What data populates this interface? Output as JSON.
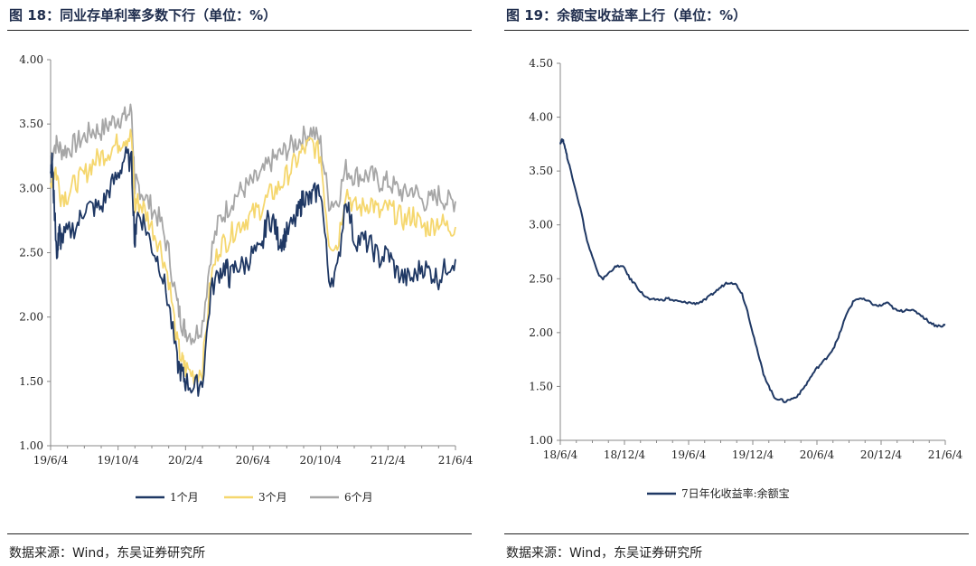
{
  "charts": [
    {
      "figure_title": "图 18：同业存单利率多数下行（单位：%）",
      "source": "数据来源：Wind，东吴证券研究所",
      "chart_data": {
        "type": "line",
        "ylim": [
          1.0,
          4.0
        ],
        "y_ticks": [
          "1.00",
          "1.50",
          "2.00",
          "2.50",
          "3.00",
          "3.50",
          "4.00"
        ],
        "x_ticks": [
          "19/6/4",
          "19/10/4",
          "20/2/4",
          "20/6/4",
          "20/10/4",
          "21/2/4",
          "21/6/4"
        ],
        "grid": false,
        "legend_position": "bottom",
        "series": [
          {
            "name": "1个月",
            "color": "#1f3864",
            "x": [
              0,
              0.1,
              0.2,
              0.4,
              0.5,
              0.6,
              1.0,
              1.6,
              2.0,
              2.5,
              3.0,
              3.5,
              4.0,
              4.4,
              4.8,
              5.0,
              5.1,
              5.5,
              6.0,
              6.5,
              7.0,
              7.5,
              7.8,
              8.0,
              8.5,
              9.0,
              9.5,
              10.0,
              10.4,
              10.6,
              11.0,
              11.5,
              12.0,
              12.5,
              12.8,
              13.2,
              13.5,
              13.8,
              14.0,
              14.5,
              14.8,
              15.0,
              15.3,
              15.6,
              16.0,
              16.5,
              17.0,
              17.5,
              18.0,
              18.5,
              19.0,
              19.5,
              20.0,
              20.5,
              21.0,
              21.5,
              22.0,
              22.5,
              23.0,
              23.5,
              24.0
            ],
            "values": [
              3.15,
              3.2,
              2.9,
              2.45,
              2.7,
              2.6,
              2.65,
              2.72,
              2.85,
              2.85,
              2.85,
              3.0,
              3.1,
              3.25,
              3.2,
              2.55,
              2.8,
              2.75,
              2.55,
              2.4,
              2.1,
              1.65,
              1.55,
              1.5,
              1.45,
              1.5,
              2.2,
              2.35,
              2.4,
              2.3,
              2.4,
              2.4,
              2.5,
              2.5,
              2.75,
              2.75,
              2.6,
              2.6,
              2.65,
              2.75,
              2.85,
              2.95,
              2.9,
              2.95,
              3.0,
              2.3,
              2.35,
              2.95,
              2.6,
              2.6,
              2.55,
              2.45,
              2.5,
              2.35,
              2.3,
              2.3,
              2.4,
              2.35,
              2.3,
              2.4,
              2.45
            ]
          },
          {
            "name": "3个月",
            "color": "#f5d76e",
            "x": [
              0,
              0.3,
              0.6,
              1.0,
              1.5,
              2.0,
              2.5,
              3.0,
              3.5,
              4.0,
              4.4,
              4.8,
              5.0,
              5.1,
              5.5,
              6.0,
              6.5,
              7.0,
              7.5,
              7.8,
              8.0,
              8.5,
              9.0,
              9.5,
              10.0,
              10.5,
              11.0,
              11.5,
              12.0,
              12.5,
              13.0,
              13.5,
              14.0,
              14.5,
              15.0,
              15.5,
              16.0,
              16.5,
              17.0,
              17.5,
              18.0,
              18.5,
              19.0,
              19.5,
              20.0,
              20.5,
              21.0,
              21.5,
              22.0,
              22.5,
              23.0,
              23.5,
              24.0
            ],
            "values": [
              3.05,
              3.15,
              2.95,
              2.95,
              3.05,
              3.1,
              3.2,
              3.25,
              3.3,
              3.35,
              3.4,
              3.4,
              2.85,
              2.9,
              2.85,
              2.7,
              2.55,
              2.3,
              1.8,
              1.65,
              1.6,
              1.55,
              1.6,
              2.3,
              2.55,
              2.6,
              2.7,
              2.75,
              2.8,
              2.85,
              2.95,
              3.0,
              3.1,
              3.2,
              3.3,
              3.35,
              3.25,
              2.6,
              2.55,
              3.0,
              2.85,
              2.85,
              2.9,
              2.8,
              2.85,
              2.8,
              2.75,
              2.8,
              2.7,
              2.7,
              2.75,
              2.7,
              2.7
            ]
          },
          {
            "name": "6个月",
            "color": "#a6a6a6",
            "x": [
              0,
              0.3,
              0.6,
              1.0,
              1.5,
              2.0,
              2.5,
              3.0,
              3.5,
              4.0,
              4.4,
              4.8,
              5.0,
              5.1,
              5.5,
              6.0,
              6.5,
              7.0,
              7.5,
              7.8,
              8.0,
              8.5,
              9.0,
              9.5,
              10.0,
              10.5,
              11.0,
              11.5,
              12.0,
              12.5,
              13.0,
              13.5,
              14.0,
              14.5,
              15.0,
              15.5,
              16.0,
              16.5,
              17.0,
              17.5,
              18.0,
              18.5,
              19.0,
              19.5,
              20.0,
              20.5,
              21.0,
              21.5,
              22.0,
              22.5,
              23.0,
              23.5,
              24.0
            ],
            "values": [
              3.25,
              3.35,
              3.3,
              3.3,
              3.35,
              3.4,
              3.45,
              3.45,
              3.5,
              3.55,
              3.55,
              3.6,
              3.0,
              3.05,
              2.95,
              2.85,
              2.75,
              2.5,
              2.1,
              1.95,
              1.9,
              1.85,
              1.95,
              2.5,
              2.75,
              2.85,
              2.95,
              3.0,
              3.05,
              3.1,
              3.2,
              3.25,
              3.3,
              3.35,
              3.4,
              3.45,
              3.35,
              2.9,
              2.9,
              3.15,
              3.1,
              3.1,
              3.1,
              3.05,
              3.05,
              3.0,
              2.95,
              3.0,
              2.9,
              2.9,
              2.95,
              2.9,
              2.9
            ]
          }
        ]
      }
    },
    {
      "figure_title": "图 19：余额宝收益率上行（单位：%）",
      "source": "数据来源：Wind，东吴证券研究所",
      "chart_data": {
        "type": "line",
        "ylim": [
          1.0,
          4.5
        ],
        "y_ticks": [
          "1.00",
          "1.50",
          "2.00",
          "2.50",
          "3.00",
          "3.50",
          "4.00",
          "4.50"
        ],
        "x_ticks": [
          "18/6/4",
          "18/12/4",
          "19/6/4",
          "19/12/4",
          "20/6/4",
          "20/12/4",
          "21/6/4"
        ],
        "grid": false,
        "legend_position": "bottom",
        "series": [
          {
            "name": "7日年化收益率:余额宝",
            "color": "#1f3864",
            "x": [
              0,
              0.1,
              0.2,
              0.3,
              0.5,
              0.7,
              1.0,
              1.5,
              2.0,
              2.5,
              3.0,
              3.5,
              4.0,
              4.5,
              5.0,
              5.5,
              6.0,
              6.5,
              7.0,
              7.5,
              8.0,
              8.5,
              9.0,
              9.5,
              10.0,
              10.5,
              11.0,
              11.5,
              12.0,
              12.5,
              13.0,
              13.5,
              14.0,
              14.5,
              15.0,
              15.5,
              16.0,
              16.5,
              17.0,
              17.5,
              18.0,
              18.5,
              19.0,
              19.5,
              20.0,
              20.5,
              21.0,
              21.5,
              22.0,
              22.5,
              23.0,
              23.5,
              24.0,
              24.5,
              25.0,
              25.5,
              26.0,
              26.5,
              27.0,
              27.5,
              28.0,
              28.5,
              29.0,
              29.5,
              30.0,
              30.5,
              31.0,
              31.5,
              32.0,
              32.5,
              33.0,
              33.5,
              34.0,
              34.5,
              35.0,
              35.5,
              36.0
            ],
            "values": [
              3.76,
              3.78,
              3.79,
              3.77,
              3.7,
              3.6,
              3.5,
              3.3,
              3.1,
              2.85,
              2.7,
              2.55,
              2.5,
              2.55,
              2.6,
              2.62,
              2.6,
              2.5,
              2.45,
              2.38,
              2.33,
              2.3,
              2.31,
              2.3,
              2.32,
              2.3,
              2.29,
              2.28,
              2.28,
              2.27,
              2.28,
              2.3,
              2.34,
              2.38,
              2.42,
              2.46,
              2.47,
              2.44,
              2.36,
              2.2,
              2.0,
              1.8,
              1.62,
              1.5,
              1.4,
              1.38,
              1.36,
              1.38,
              1.4,
              1.45,
              1.52,
              1.6,
              1.67,
              1.72,
              1.78,
              1.85,
              1.95,
              2.1,
              2.22,
              2.3,
              2.32,
              2.3,
              2.28,
              2.25,
              2.25,
              2.28,
              2.24,
              2.2,
              2.2,
              2.22,
              2.2,
              2.18,
              2.14,
              2.1,
              2.07,
              2.06,
              2.07
            ]
          }
        ]
      }
    }
  ]
}
